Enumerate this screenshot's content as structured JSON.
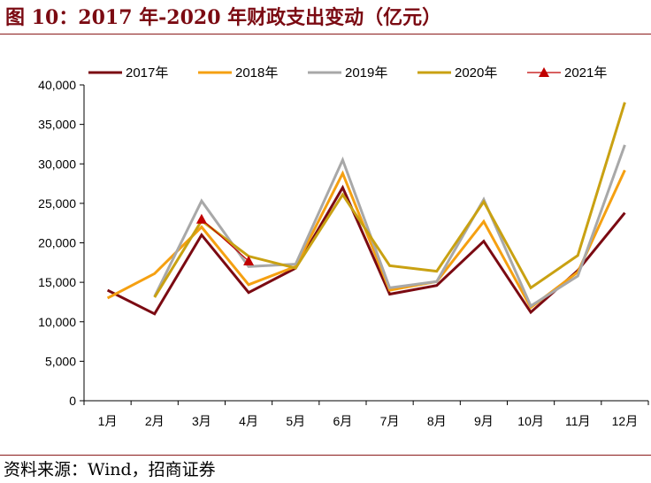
{
  "title": "图 10：2017 年-2020 年财政支出变动（亿元）",
  "source": "资料来源：Wind，招商证券",
  "chart_data": {
    "type": "line",
    "title": "图 10：2017 年-2020 年财政支出变动（亿元）",
    "categories": [
      "1月",
      "2月",
      "3月",
      "4月",
      "5月",
      "6月",
      "7月",
      "8月",
      "9月",
      "10月",
      "11月",
      "12月"
    ],
    "y_ticks": [
      "0",
      "5,000",
      "10,000",
      "15,000",
      "20,000",
      "25,000",
      "30,000",
      "35,000",
      "40,000"
    ],
    "ylim": [
      0,
      40000
    ],
    "legend_position": "top",
    "grid": false,
    "series": [
      {
        "name": "2017年",
        "color": "#7b0a12",
        "marker": "none",
        "values": [
          14000,
          11000,
          21000,
          13700,
          16800,
          27000,
          13500,
          14600,
          20200,
          11200,
          16500,
          23800
        ]
      },
      {
        "name": "2018年",
        "color": "#f5a011",
        "marker": "none",
        "values": [
          13000,
          16100,
          22000,
          14700,
          17000,
          28800,
          14000,
          15100,
          22700,
          11800,
          16300,
          29200
        ]
      },
      {
        "name": "2019年",
        "color": "#a8a8a8",
        "marker": "none",
        "values": [
          null,
          13200,
          25300,
          17000,
          17300,
          30500,
          14300,
          15100,
          25500,
          12000,
          15800,
          32400
        ]
      },
      {
        "name": "2020年",
        "color": "#c9a112",
        "marker": "none",
        "values": [
          null,
          13100,
          22800,
          18300,
          16800,
          26100,
          17100,
          16400,
          25200,
          14300,
          18400,
          37800
        ]
      },
      {
        "name": "2021年",
        "color": "#c00000",
        "marker": "triangle",
        "values": [
          null,
          null,
          23000,
          17700,
          null,
          null,
          null,
          null,
          null,
          null,
          null,
          null
        ]
      }
    ]
  }
}
